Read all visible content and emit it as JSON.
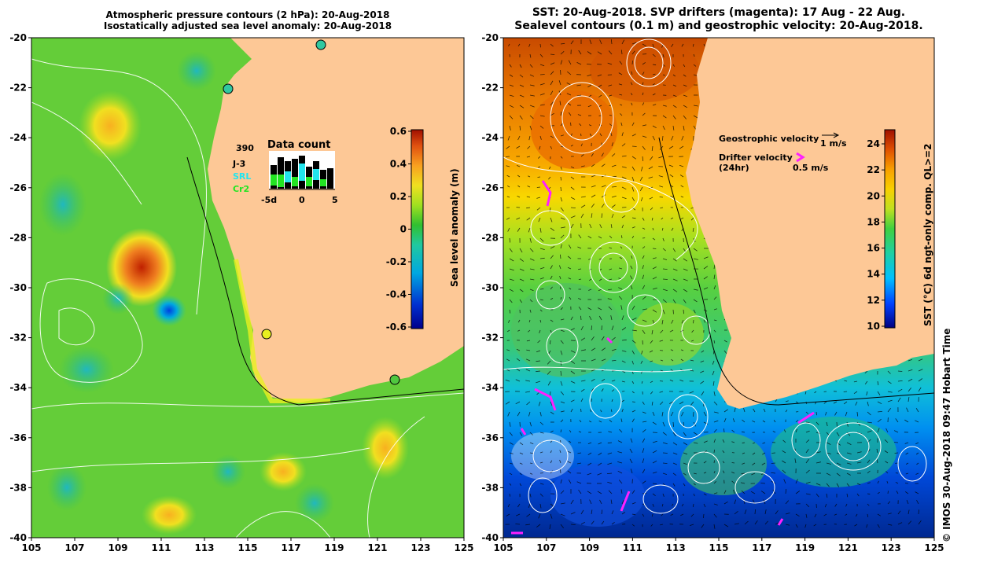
{
  "left_panel": {
    "title_line1": "Atmospheric pressure contours (2 hPa): 20-Aug-2018",
    "title_line2": "Isostatically adjusted sea level anomaly: 20-Aug-2018",
    "colorbar_label": "Sea level anomaly (m)",
    "colorbar_ticks": [
      "0.6",
      "0.4",
      "0.2",
      "0",
      "-0.2",
      "-0.4",
      "-0.6"
    ],
    "inset": {
      "title": "Data count",
      "count": "390",
      "missions": [
        {
          "label": "J-3",
          "color": "#000000"
        },
        {
          "label": "SRL",
          "color": "#22e5ee"
        },
        {
          "label": "Cr2",
          "color": "#22e522"
        }
      ],
      "axis_ticks": [
        "-5d",
        "0",
        "5"
      ]
    }
  },
  "right_panel": {
    "title_line1": "SST: 20-Aug-2018. SVP drifters (magenta): 17 Aug - 22 Aug.",
    "title_line2": "Sealevel contours (0.1 m) and geostrophic velocity: 20-Aug-2018.",
    "legend": {
      "geo_label": "Geostrophic velocity",
      "geo_scale": "1 m/s",
      "drifter_label_line1": "Drifter velocity",
      "drifter_label_line2": "(24hr)",
      "drifter_scale": "0.5 m/s"
    },
    "colorbar_label": "SST (°C) 6d ngt-only comp. QL>=2",
    "colorbar_ticks": [
      "24",
      "22",
      "20",
      "18",
      "16",
      "14",
      "12",
      "10"
    ]
  },
  "axes": {
    "lon_ticks": [
      "105",
      "107",
      "109",
      "111",
      "113",
      "115",
      "117",
      "119",
      "121",
      "123",
      "125"
    ],
    "lat_ticks": [
      "-20",
      "-22",
      "-24",
      "-26",
      "-28",
      "-30",
      "-32",
      "-34",
      "-36",
      "-38",
      "-40"
    ]
  },
  "credit": "© IMOS 30-Aug-2018 09:47 Hobart Time",
  "colors": {
    "land": "#fdc896",
    "drifters": "#ff20ff",
    "ssh_mid": "#3cc83c"
  }
}
